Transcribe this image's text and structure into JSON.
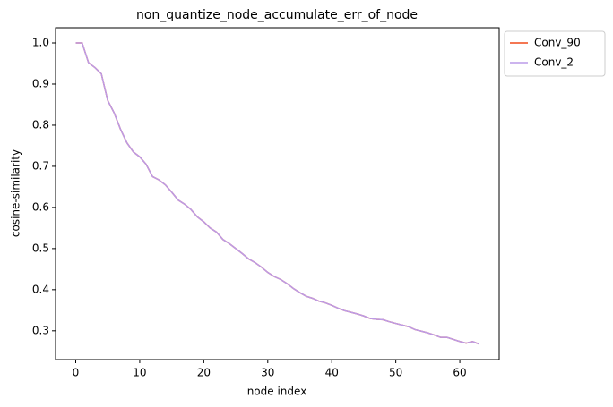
{
  "chart_data": {
    "type": "line",
    "title": "non_quantize_node_accumulate_err_of_node",
    "x_label": "node index",
    "y_label": "cosine-similarity",
    "x": [
      0,
      1,
      2,
      3,
      4,
      5,
      6,
      7,
      8,
      9,
      10,
      11,
      12,
      13,
      14,
      15,
      16,
      17,
      18,
      19,
      20,
      21,
      22,
      23,
      24,
      25,
      26,
      27,
      28,
      29,
      30,
      31,
      32,
      33,
      34,
      35,
      36,
      37,
      38,
      39,
      40,
      41,
      42,
      43,
      44,
      45,
      46,
      47,
      48,
      49,
      50,
      51,
      52,
      53,
      54,
      55,
      56,
      57,
      58,
      59,
      60,
      61,
      62,
      63
    ],
    "series": [
      {
        "name": "Conv_90",
        "color": "#f04a1a",
        "values": [
          1.0,
          1.0,
          0.952,
          0.94,
          0.925,
          0.86,
          0.83,
          0.79,
          0.757,
          0.735,
          0.723,
          0.705,
          0.675,
          0.667,
          0.655,
          0.637,
          0.618,
          0.608,
          0.595,
          0.577,
          0.565,
          0.55,
          0.54,
          0.522,
          0.512,
          0.5,
          0.488,
          0.475,
          0.466,
          0.455,
          0.442,
          0.432,
          0.425,
          0.415,
          0.403,
          0.393,
          0.384,
          0.379,
          0.372,
          0.368,
          0.362,
          0.355,
          0.349,
          0.345,
          0.341,
          0.336,
          0.33,
          0.328,
          0.327,
          0.322,
          0.318,
          0.314,
          0.31,
          0.303,
          0.299,
          0.295,
          0.29,
          0.284,
          0.284,
          0.279,
          0.274,
          0.27,
          0.274,
          0.268
        ]
      },
      {
        "name": "Conv_2",
        "color": "#bb9ce8",
        "values": [
          1.0,
          1.0,
          0.952,
          0.94,
          0.925,
          0.86,
          0.83,
          0.79,
          0.757,
          0.735,
          0.723,
          0.705,
          0.675,
          0.667,
          0.655,
          0.637,
          0.618,
          0.608,
          0.595,
          0.577,
          0.565,
          0.55,
          0.54,
          0.522,
          0.512,
          0.5,
          0.488,
          0.475,
          0.466,
          0.455,
          0.442,
          0.432,
          0.425,
          0.415,
          0.403,
          0.393,
          0.384,
          0.379,
          0.372,
          0.368,
          0.362,
          0.355,
          0.349,
          0.345,
          0.341,
          0.336,
          0.33,
          0.328,
          0.327,
          0.322,
          0.318,
          0.314,
          0.31,
          0.303,
          0.299,
          0.295,
          0.29,
          0.284,
          0.284,
          0.279,
          0.274,
          0.27,
          0.274,
          0.268
        ]
      }
    ],
    "xlim": [
      -3.15,
      66.15
    ],
    "xticks": [
      0,
      10,
      20,
      30,
      40,
      50,
      60
    ],
    "ylim": [
      0.23,
      1.037
    ],
    "yticks": [
      {
        "value": 0.3,
        "label": "0.3"
      },
      {
        "value": 0.4,
        "label": "0.4"
      },
      {
        "value": 0.5,
        "label": "0.5"
      },
      {
        "value": 0.6,
        "label": "0.6"
      },
      {
        "value": 0.7,
        "label": "0.7"
      },
      {
        "value": 0.8,
        "label": "0.8"
      },
      {
        "value": 0.9,
        "label": "0.9"
      },
      {
        "value": 1.0,
        "label": "1.0"
      }
    ],
    "grid": false,
    "legend": "outside-upper-right"
  }
}
